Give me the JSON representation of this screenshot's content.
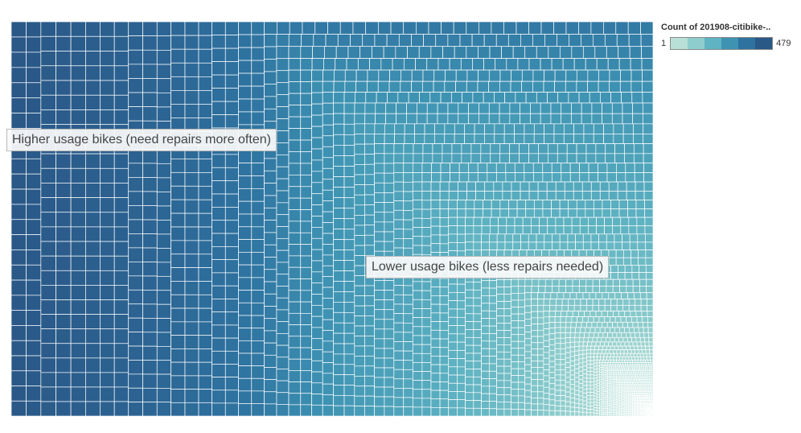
{
  "chart_data": {
    "type": "treemap",
    "description_of_values": "Many small rectangles, one per bike, sized and colored by trip count; largest/darkest at left and bottom-left, smallest/lightest at bottom-right",
    "legend": {
      "title": "Count of 201908-citibike-..",
      "min_label": "1",
      "max_label": "479",
      "min": 1,
      "max": 479,
      "steps": 6,
      "colors": [
        "#b9e0d7",
        "#8ecdcd",
        "#5fb3c2",
        "#3e93b3",
        "#2e72a0",
        "#2a5887"
      ]
    },
    "annotations": [
      "Higher usage bikes (need repairs more often)",
      "Lower usage bikes (less repairs needed)"
    ],
    "value_bands": [
      {
        "from": 479,
        "to": 420
      },
      {
        "from": 420,
        "to": 330
      },
      {
        "from": 330,
        "to": 260
      },
      {
        "from": 260,
        "to": 215
      },
      {
        "from": 215,
        "to": 185
      },
      {
        "from": 185,
        "to": 150
      },
      {
        "from": 150,
        "to": 115
      },
      {
        "from": 115,
        "to": 75
      },
      {
        "from": 75,
        "to": 35
      },
      {
        "from": 35,
        "to": 8
      },
      {
        "from": 8,
        "to": 1
      }
    ]
  }
}
